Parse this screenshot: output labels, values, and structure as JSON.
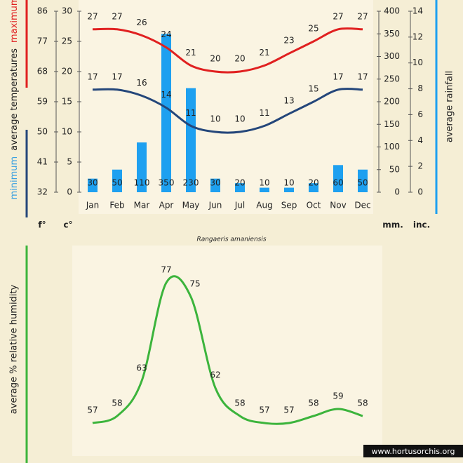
{
  "chart_data": [
    {
      "type": "combo",
      "subtitle": "Rangaeris amaniensis",
      "categories": [
        "Jan",
        "Feb",
        "Mar",
        "Apr",
        "May",
        "Jun",
        "Jul",
        "Aug",
        "Sep",
        "Oct",
        "Nov",
        "Dec"
      ],
      "series": [
        {
          "name": "maximum",
          "color": "#e02020",
          "kind": "line",
          "values": [
            27,
            27,
            26,
            24,
            21,
            20,
            20,
            21,
            23,
            25,
            27,
            27
          ]
        },
        {
          "name": "minimum",
          "color": "#24467a",
          "label_color": "#3aa0e0",
          "kind": "line",
          "values": [
            17,
            17,
            16,
            14,
            11,
            10,
            10,
            11,
            13,
            15,
            17,
            17
          ]
        },
        {
          "name": "average rainfall",
          "color": "#1ea0f0",
          "kind": "bar",
          "axis": "y2",
          "values": [
            30,
            50,
            110,
            350,
            230,
            30,
            20,
            10,
            10,
            20,
            60,
            50
          ]
        }
      ],
      "ylabel": "average  temperatures",
      "ylim": [
        0,
        30
      ],
      "yticks": [
        0,
        5,
        10,
        15,
        20,
        25,
        30
      ],
      "yunit": "c°",
      "yflim": [
        32,
        86
      ],
      "yfticks": [
        32,
        41,
        50,
        59,
        68,
        77,
        86
      ],
      "yfunit": "f°",
      "y2lim": [
        0,
        400
      ],
      "y2ticks": [
        0,
        50,
        100,
        150,
        200,
        250,
        300,
        350,
        400
      ],
      "y2unit": "mm.",
      "y2inlim": [
        0,
        14
      ],
      "y2inticks": [
        0,
        2,
        4,
        6,
        8,
        10,
        12,
        14
      ],
      "y2inunit": "inc."
    },
    {
      "type": "line",
      "ylabel": "average %  relative humidity",
      "color": "#3cb43c",
      "values": [
        57,
        58,
        63,
        77,
        75,
        62,
        58,
        57,
        57,
        58,
        59,
        58
      ],
      "ylim": [
        55,
        80
      ]
    }
  ],
  "footer": "www.hortusorchis.org"
}
